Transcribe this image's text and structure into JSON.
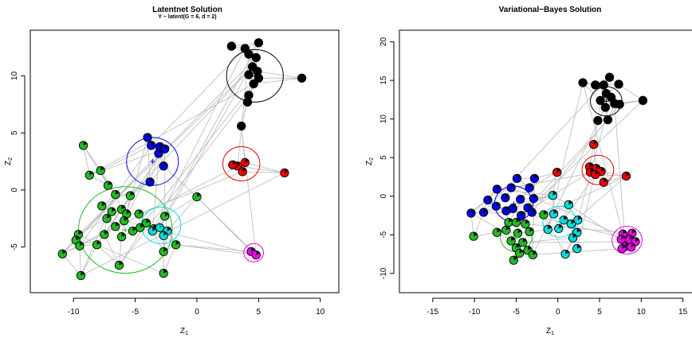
{
  "chart_data": [
    {
      "type": "scatter",
      "title": "Latentnet Solution",
      "subtitle": "Y ~ latent(G = 6, d = 2)",
      "xlabel": "Z",
      "xlabel_sub": "1",
      "ylabel": "Z",
      "ylabel_sub": "2",
      "xlim": [
        -13.5,
        11.5
      ],
      "ylim": [
        -9,
        14
      ],
      "xticks": [
        "-10",
        "-5",
        "0",
        "5",
        "10"
      ],
      "xtick_values": [
        -10,
        -5,
        0,
        5,
        10
      ],
      "yticks": [
        "-5",
        "0",
        "5",
        "10"
      ],
      "ytick_values": [
        -5,
        0,
        5,
        10
      ],
      "edge_color": "#bfbfbf",
      "clusters": [
        {
          "name": "black",
          "color": "#000000",
          "center": [
            4.7,
            10.0
          ],
          "radius": 2.3
        },
        {
          "name": "blue",
          "color": "#0000ee",
          "center": [
            -3.6,
            2.5
          ],
          "radius": 2.1
        },
        {
          "name": "red",
          "color": "#ee0000",
          "center": [
            3.6,
            2.3
          ],
          "radius": 1.5
        },
        {
          "name": "green",
          "color": "#22bb22",
          "center": [
            -5.8,
            -3.5
          ],
          "radius": 3.8
        },
        {
          "name": "cyan",
          "color": "#00dddd",
          "center": [
            -2.9,
            -3.1
          ],
          "radius": 1.6
        },
        {
          "name": "magenta",
          "color": "#ee00ee",
          "center": [
            4.6,
            -5.5
          ],
          "radius": 0.8
        }
      ],
      "nodes": [
        {
          "x": 2.8,
          "y": 12.6,
          "c": "black"
        },
        {
          "x": 3.9,
          "y": 12.4,
          "c": "black"
        },
        {
          "x": 5.0,
          "y": 12.9,
          "c": "black"
        },
        {
          "x": 4.2,
          "y": 11.9,
          "c": "black"
        },
        {
          "x": 4.8,
          "y": 11.6,
          "c": "black"
        },
        {
          "x": 4.5,
          "y": 10.8,
          "c": "black"
        },
        {
          "x": 4.9,
          "y": 10.4,
          "c": "black"
        },
        {
          "x": 4.2,
          "y": 10.1,
          "c": "black"
        },
        {
          "x": 5.0,
          "y": 9.8,
          "c": "black"
        },
        {
          "x": 4.6,
          "y": 9.3,
          "c": "black"
        },
        {
          "x": 4.2,
          "y": 8.3,
          "c": "black"
        },
        {
          "x": 4.1,
          "y": 7.7,
          "c": "black"
        },
        {
          "x": 8.5,
          "y": 9.8,
          "c": "black"
        },
        {
          "x": 3.6,
          "y": 5.6,
          "c": "black"
        },
        {
          "x": -4.0,
          "y": 4.6,
          "c": "blue"
        },
        {
          "x": -3.7,
          "y": 3.9,
          "c": "blue"
        },
        {
          "x": -3.0,
          "y": 3.8,
          "c": "blue"
        },
        {
          "x": -2.6,
          "y": 3.6,
          "c": "blue"
        },
        {
          "x": -3.1,
          "y": 3.2,
          "c": "blue"
        },
        {
          "x": -2.7,
          "y": 2.1,
          "c": "blue"
        },
        {
          "x": -3.8,
          "y": 0.7,
          "c": "blue"
        },
        {
          "x": 3.3,
          "y": 2.1,
          "c": "red"
        },
        {
          "x": 3.9,
          "y": 2.4,
          "c": "red"
        },
        {
          "x": 3.7,
          "y": 1.6,
          "c": "red"
        },
        {
          "x": 2.9,
          "y": 2.2,
          "c": "red"
        },
        {
          "x": 7.1,
          "y": 1.5,
          "c": "red"
        },
        {
          "x": -9.2,
          "y": 3.9,
          "c": "green"
        },
        {
          "x": -7.8,
          "y": 1.7,
          "c": "green"
        },
        {
          "x": -8.7,
          "y": 1.3,
          "c": "green"
        },
        {
          "x": -7.2,
          "y": 0.4,
          "c": "green"
        },
        {
          "x": -6.6,
          "y": -0.4,
          "c": "green"
        },
        {
          "x": -5.4,
          "y": -0.5,
          "c": "green"
        },
        {
          "x": -7.7,
          "y": -1.4,
          "c": "green"
        },
        {
          "x": -6.9,
          "y": -1.9,
          "c": "green"
        },
        {
          "x": -6.1,
          "y": -1.7,
          "c": "green"
        },
        {
          "x": -5.7,
          "y": -2.1,
          "c": "green"
        },
        {
          "x": -4.7,
          "y": -2.1,
          "c": "green"
        },
        {
          "x": -7.3,
          "y": -2.5,
          "c": "green"
        },
        {
          "x": -5.9,
          "y": -2.7,
          "c": "green"
        },
        {
          "x": -4.1,
          "y": -2.9,
          "c": "green"
        },
        {
          "x": -6.6,
          "y": -3.2,
          "c": "green"
        },
        {
          "x": -5.2,
          "y": -3.6,
          "c": "green"
        },
        {
          "x": -4.6,
          "y": -3.3,
          "c": "green"
        },
        {
          "x": -3.5,
          "y": -3.4,
          "c": "green"
        },
        {
          "x": -7.5,
          "y": -3.9,
          "c": "green"
        },
        {
          "x": -6.1,
          "y": -4.1,
          "c": "green"
        },
        {
          "x": -9.6,
          "y": -3.9,
          "c": "green"
        },
        {
          "x": -9.8,
          "y": -4.4,
          "c": "green"
        },
        {
          "x": -8.1,
          "y": -4.8,
          "c": "green"
        },
        {
          "x": -9.5,
          "y": -4.9,
          "c": "green"
        },
        {
          "x": -10.9,
          "y": -5.6,
          "c": "green"
        },
        {
          "x": -6.3,
          "y": -6.6,
          "c": "green"
        },
        {
          "x": -9.4,
          "y": -7.5,
          "c": "green"
        },
        {
          "x": -2.7,
          "y": -7.3,
          "c": "green"
        },
        {
          "x": -1.7,
          "y": -4.8,
          "c": "green"
        },
        {
          "x": -2.7,
          "y": -5.4,
          "c": "green"
        },
        {
          "x": -2.6,
          "y": -2.3,
          "c": "green"
        },
        {
          "x": 0.0,
          "y": -0.6,
          "c": "green"
        },
        {
          "x": -3.0,
          "y": -3.3,
          "c": "cyan"
        },
        {
          "x": -3.6,
          "y": -3.6,
          "c": "cyan"
        },
        {
          "x": -2.4,
          "y": -3.6,
          "c": "cyan"
        },
        {
          "x": -2.7,
          "y": -4.0,
          "c": "cyan"
        },
        {
          "x": 4.4,
          "y": -5.4,
          "c": "magenta"
        },
        {
          "x": 4.8,
          "y": -5.7,
          "c": "magenta"
        }
      ]
    },
    {
      "type": "scatter",
      "title": "Variational−Bayes Solution",
      "xlabel": "Z",
      "xlabel_sub": "1",
      "ylabel": "Z",
      "ylabel_sub": "2",
      "xlim": [
        -19,
        18
      ],
      "ylim": [
        -12.5,
        21.5
      ],
      "xticks": [
        "-15",
        "-10",
        "-5",
        "0",
        "5",
        "10",
        "15"
      ],
      "xtick_values": [
        -15,
        -10,
        -5,
        0,
        5,
        10,
        15
      ],
      "yticks": [
        "-10",
        "-5",
        "0",
        "5",
        "10",
        "15",
        "20"
      ],
      "ytick_values": [
        -10,
        -5,
        0,
        5,
        10,
        15,
        20
      ],
      "edge_color": "#bfbfbf",
      "clusters": [
        {
          "name": "black",
          "color": "#000000",
          "center": [
            5.8,
            12.3
          ],
          "radius": 1.9
        },
        {
          "name": "blue",
          "color": "#0000ee",
          "center": [
            -5.3,
            -1.0
          ],
          "radius": 2.3
        },
        {
          "name": "red",
          "color": "#ee0000",
          "center": [
            4.8,
            3.4
          ],
          "radius": 1.9
        },
        {
          "name": "green",
          "color": "#22bb22",
          "center": [
            -5.0,
            -5.3
          ],
          "radius": 1.9
        },
        {
          "name": "cyan",
          "color": "#00dddd",
          "center": [
            0.2,
            -3.3
          ],
          "radius": 2.0
        },
        {
          "name": "magenta",
          "color": "#ee00ee",
          "center": [
            8.3,
            -5.7
          ],
          "radius": 1.8
        }
      ],
      "nodes": [
        {
          "x": 3.0,
          "y": 14.7,
          "c": "black"
        },
        {
          "x": 4.5,
          "y": 14.4,
          "c": "black"
        },
        {
          "x": 6.2,
          "y": 15.4,
          "c": "black"
        },
        {
          "x": 5.5,
          "y": 14.4,
          "c": "black"
        },
        {
          "x": 7.3,
          "y": 14.5,
          "c": "black"
        },
        {
          "x": 5.8,
          "y": 13.3,
          "c": "black"
        },
        {
          "x": 6.4,
          "y": 12.8,
          "c": "black"
        },
        {
          "x": 5.1,
          "y": 12.4,
          "c": "black"
        },
        {
          "x": 6.8,
          "y": 12.0,
          "c": "black"
        },
        {
          "x": 7.4,
          "y": 11.9,
          "c": "black"
        },
        {
          "x": 5.7,
          "y": 11.5,
          "c": "black"
        },
        {
          "x": 4.8,
          "y": 9.8,
          "c": "black"
        },
        {
          "x": 6.0,
          "y": 9.9,
          "c": "black"
        },
        {
          "x": 10.2,
          "y": 12.4,
          "c": "black"
        },
        {
          "x": -4.9,
          "y": 2.3,
          "c": "blue"
        },
        {
          "x": -2.8,
          "y": 2.3,
          "c": "blue"
        },
        {
          "x": -3.4,
          "y": 1.1,
          "c": "blue"
        },
        {
          "x": -5.6,
          "y": 1.1,
          "c": "blue"
        },
        {
          "x": -7.3,
          "y": 0.9,
          "c": "blue"
        },
        {
          "x": -6.3,
          "y": -0.2,
          "c": "blue"
        },
        {
          "x": -4.5,
          "y": -0.4,
          "c": "blue"
        },
        {
          "x": -2.9,
          "y": -0.3,
          "c": "blue"
        },
        {
          "x": -8.4,
          "y": -0.5,
          "c": "blue"
        },
        {
          "x": -7.4,
          "y": -1.3,
          "c": "blue"
        },
        {
          "x": -5.4,
          "y": -1.6,
          "c": "blue"
        },
        {
          "x": -3.6,
          "y": -1.5,
          "c": "blue"
        },
        {
          "x": -6.2,
          "y": -1.9,
          "c": "blue"
        },
        {
          "x": -8.9,
          "y": -2.1,
          "c": "blue"
        },
        {
          "x": -4.4,
          "y": -2.5,
          "c": "blue"
        },
        {
          "x": -10.4,
          "y": -2.2,
          "c": "blue"
        },
        {
          "x": -3.1,
          "y": -2.1,
          "c": "blue"
        },
        {
          "x": 3.8,
          "y": 3.8,
          "c": "red"
        },
        {
          "x": 4.6,
          "y": 3.6,
          "c": "red"
        },
        {
          "x": 5.2,
          "y": 3.2,
          "c": "red"
        },
        {
          "x": 3.9,
          "y": 3.1,
          "c": "red"
        },
        {
          "x": 4.5,
          "y": 2.8,
          "c": "red"
        },
        {
          "x": 5.5,
          "y": 1.8,
          "c": "red"
        },
        {
          "x": 4.3,
          "y": 6.7,
          "c": "red"
        },
        {
          "x": -0.1,
          "y": 3.1,
          "c": "red"
        },
        {
          "x": 8.2,
          "y": 2.6,
          "c": "red"
        },
        {
          "x": -5.9,
          "y": -3.4,
          "c": "green"
        },
        {
          "x": -5.0,
          "y": -3.4,
          "c": "green"
        },
        {
          "x": -3.9,
          "y": -3.6,
          "c": "green"
        },
        {
          "x": -6.2,
          "y": -4.4,
          "c": "green"
        },
        {
          "x": -4.8,
          "y": -4.8,
          "c": "green"
        },
        {
          "x": -3.4,
          "y": -4.6,
          "c": "green"
        },
        {
          "x": -5.6,
          "y": -5.8,
          "c": "green"
        },
        {
          "x": -4.2,
          "y": -6.0,
          "c": "green"
        },
        {
          "x": -5.0,
          "y": -6.7,
          "c": "green"
        },
        {
          "x": -3.6,
          "y": -7.0,
          "c": "green"
        },
        {
          "x": -4.6,
          "y": -7.4,
          "c": "green"
        },
        {
          "x": -3.0,
          "y": -7.6,
          "c": "green"
        },
        {
          "x": -5.3,
          "y": -8.3,
          "c": "green"
        },
        {
          "x": -7.3,
          "y": -4.7,
          "c": "green"
        },
        {
          "x": -10.1,
          "y": -5.2,
          "c": "green"
        },
        {
          "x": -1.7,
          "y": -2.4,
          "c": "green"
        },
        {
          "x": -0.6,
          "y": 0.1,
          "c": "cyan"
        },
        {
          "x": 1.3,
          "y": -1.1,
          "c": "cyan"
        },
        {
          "x": -0.5,
          "y": -2.3,
          "c": "cyan"
        },
        {
          "x": 0.7,
          "y": -3.1,
          "c": "cyan"
        },
        {
          "x": 2.4,
          "y": -3.1,
          "c": "cyan"
        },
        {
          "x": 1.6,
          "y": -3.6,
          "c": "cyan"
        },
        {
          "x": 0.1,
          "y": -4.2,
          "c": "cyan"
        },
        {
          "x": -1.2,
          "y": -4.3,
          "c": "cyan"
        },
        {
          "x": 2.3,
          "y": -4.7,
          "c": "cyan"
        },
        {
          "x": 1.8,
          "y": -5.4,
          "c": "cyan"
        },
        {
          "x": 2.3,
          "y": -6.8,
          "c": "cyan"
        },
        {
          "x": 0.9,
          "y": -7.5,
          "c": "cyan"
        },
        {
          "x": 7.8,
          "y": -4.9,
          "c": "magenta"
        },
        {
          "x": 8.9,
          "y": -4.8,
          "c": "magenta"
        },
        {
          "x": 7.6,
          "y": -5.6,
          "c": "magenta"
        },
        {
          "x": 8.6,
          "y": -5.6,
          "c": "magenta"
        },
        {
          "x": 9.3,
          "y": -5.9,
          "c": "magenta"
        },
        {
          "x": 8.1,
          "y": -6.5,
          "c": "magenta"
        },
        {
          "x": 8.8,
          "y": -6.6,
          "c": "magenta"
        },
        {
          "x": 7.7,
          "y": -6.8,
          "c": "magenta"
        }
      ]
    }
  ]
}
